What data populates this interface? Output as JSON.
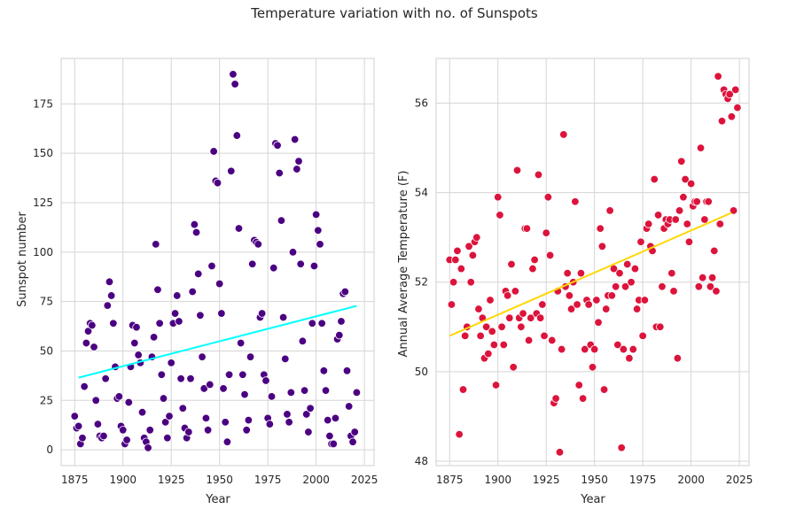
{
  "title": "Temperature variation with no. of Sunspots",
  "chart_data": [
    {
      "type": "scatter",
      "xlabel": "Year",
      "ylabel": "Sunspot number",
      "xlim": [
        1868,
        2030
      ],
      "ylim": [
        -8,
        198
      ],
      "xticks": [
        1875,
        1900,
        1925,
        1950,
        1975,
        2000,
        2025
      ],
      "yticks": [
        0,
        25,
        50,
        75,
        100,
        125,
        150,
        175
      ],
      "grid": true,
      "point_color": "#4B0082",
      "trend_color": "#00FFFF",
      "trend": [
        [
          1877,
          36.5
        ],
        [
          2021,
          72.8
        ]
      ],
      "points": [
        [
          1875,
          17
        ],
        [
          1876,
          11
        ],
        [
          1877,
          12
        ],
        [
          1878,
          3
        ],
        [
          1879,
          6
        ],
        [
          1880,
          32
        ],
        [
          1881,
          54
        ],
        [
          1882,
          60
        ],
        [
          1883,
          64
        ],
        [
          1884,
          63
        ],
        [
          1885,
          52
        ],
        [
          1886,
          25
        ],
        [
          1887,
          13
        ],
        [
          1888,
          7
        ],
        [
          1889,
          6
        ],
        [
          1890,
          7
        ],
        [
          1891,
          36
        ],
        [
          1892,
          73
        ],
        [
          1893,
          85
        ],
        [
          1894,
          78
        ],
        [
          1895,
          64
        ],
        [
          1896,
          42
        ],
        [
          1897,
          26
        ],
        [
          1898,
          27
        ],
        [
          1899,
          12
        ],
        [
          1900,
          10
        ],
        [
          1901,
          3
        ],
        [
          1902,
          5
        ],
        [
          1903,
          24
        ],
        [
          1904,
          42
        ],
        [
          1905,
          63
        ],
        [
          1906,
          54
        ],
        [
          1907,
          62
        ],
        [
          1908,
          48
        ],
        [
          1909,
          44
        ],
        [
          1910,
          19
        ],
        [
          1911,
          6
        ],
        [
          1912,
          4
        ],
        [
          1913,
          1
        ],
        [
          1914,
          10
        ],
        [
          1915,
          47
        ],
        [
          1916,
          57
        ],
        [
          1917,
          104
        ],
        [
          1918,
          81
        ],
        [
          1919,
          64
        ],
        [
          1920,
          38
        ],
        [
          1921,
          26
        ],
        [
          1922,
          14
        ],
        [
          1923,
          6
        ],
        [
          1924,
          17
        ],
        [
          1925,
          44
        ],
        [
          1926,
          64
        ],
        [
          1927,
          69
        ],
        [
          1928,
          78
        ],
        [
          1929,
          65
        ],
        [
          1930,
          36
        ],
        [
          1931,
          21
        ],
        [
          1932,
          11
        ],
        [
          1933,
          6
        ],
        [
          1934,
          9
        ],
        [
          1935,
          36
        ],
        [
          1936,
          80
        ],
        [
          1937,
          114
        ],
        [
          1938,
          110
        ],
        [
          1939,
          89
        ],
        [
          1940,
          68
        ],
        [
          1941,
          47
        ],
        [
          1942,
          31
        ],
        [
          1943,
          16
        ],
        [
          1944,
          10
        ],
        [
          1945,
          33
        ],
        [
          1946,
          93
        ],
        [
          1947,
          151
        ],
        [
          1948,
          136
        ],
        [
          1949,
          135
        ],
        [
          1950,
          84
        ],
        [
          1951,
          69
        ],
        [
          1952,
          31
        ],
        [
          1953,
          14
        ],
        [
          1954,
          4
        ],
        [
          1955,
          38
        ],
        [
          1956,
          141
        ],
        [
          1957,
          190
        ],
        [
          1958,
          185
        ],
        [
          1959,
          159
        ],
        [
          1960,
          112
        ],
        [
          1961,
          54
        ],
        [
          1962,
          38
        ],
        [
          1963,
          28
        ],
        [
          1964,
          10
        ],
        [
          1965,
          15
        ],
        [
          1966,
          47
        ],
        [
          1967,
          94
        ],
        [
          1968,
          106
        ],
        [
          1969,
          105
        ],
        [
          1970,
          104
        ],
        [
          1971,
          67
        ],
        [
          1972,
          69
        ],
        [
          1973,
          38
        ],
        [
          1974,
          35
        ],
        [
          1975,
          16
        ],
        [
          1976,
          13
        ],
        [
          1977,
          27
        ],
        [
          1978,
          92
        ],
        [
          1979,
          155
        ],
        [
          1980,
          154
        ],
        [
          1981,
          140
        ],
        [
          1982,
          116
        ],
        [
          1983,
          67
        ],
        [
          1984,
          46
        ],
        [
          1985,
          18
        ],
        [
          1986,
          14
        ],
        [
          1987,
          29
        ],
        [
          1988,
          100
        ],
        [
          1989,
          157
        ],
        [
          1990,
          142
        ],
        [
          1991,
          146
        ],
        [
          1992,
          94
        ],
        [
          1993,
          55
        ],
        [
          1994,
          30
        ],
        [
          1995,
          18
        ],
        [
          1996,
          9
        ],
        [
          1997,
          21
        ],
        [
          1998,
          64
        ],
        [
          1999,
          93
        ],
        [
          2000,
          119
        ],
        [
          2001,
          111
        ],
        [
          2002,
          104
        ],
        [
          2003,
          64
        ],
        [
          2004,
          40
        ],
        [
          2005,
          30
        ],
        [
          2006,
          15
        ],
        [
          2007,
          7
        ],
        [
          2008,
          3
        ],
        [
          2009,
          3
        ],
        [
          2010,
          16
        ],
        [
          2011,
          56
        ],
        [
          2012,
          58
        ],
        [
          2013,
          65
        ],
        [
          2014,
          79
        ],
        [
          2015,
          80
        ],
        [
          2016,
          40
        ],
        [
          2017,
          22
        ],
        [
          2018,
          7
        ],
        [
          2019,
          4
        ],
        [
          2020,
          9
        ],
        [
          2021,
          29
        ]
      ]
    },
    {
      "type": "scatter",
      "xlabel": "Year",
      "ylabel": "Annual Average Temperature (F)",
      "xlim": [
        1868,
        2030
      ],
      "ylim": [
        47.9,
        57.0
      ],
      "xticks": [
        1875,
        1900,
        1925,
        1950,
        1975,
        2000,
        2025
      ],
      "yticks": [
        48,
        50,
        52,
        54,
        56
      ],
      "grid": true,
      "point_color": "#DC143C",
      "trend_color": "#FFD700",
      "trend": [
        [
          1875,
          50.8
        ],
        [
          2021,
          53.55
        ]
      ],
      "points": [
        [
          1875,
          52.5
        ],
        [
          1876,
          51.5
        ],
        [
          1877,
          52.0
        ],
        [
          1878,
          52.5
        ],
        [
          1879,
          52.7
        ],
        [
          1880,
          48.6
        ],
        [
          1881,
          52.3
        ],
        [
          1882,
          49.6
        ],
        [
          1883,
          50.8
        ],
        [
          1884,
          51.0
        ],
        [
          1885,
          52.8
        ],
        [
          1886,
          52.0
        ],
        [
          1887,
          52.6
        ],
        [
          1888,
          52.9
        ],
        [
          1889,
          53.0
        ],
        [
          1890,
          51.4
        ],
        [
          1891,
          50.8
        ],
        [
          1892,
          51.2
        ],
        [
          1893,
          50.3
        ],
        [
          1894,
          51.0
        ],
        [
          1895,
          50.4
        ],
        [
          1896,
          51.6
        ],
        [
          1897,
          50.9
        ],
        [
          1898,
          50.6
        ],
        [
          1899,
          49.7
        ],
        [
          1900,
          53.9
        ],
        [
          1901,
          53.5
        ],
        [
          1902,
          51.0
        ],
        [
          1903,
          50.6
        ],
        [
          1904,
          51.8
        ],
        [
          1905,
          51.7
        ],
        [
          1906,
          51.2
        ],
        [
          1907,
          52.4
        ],
        [
          1908,
          50.1
        ],
        [
          1909,
          51.8
        ],
        [
          1910,
          54.5
        ],
        [
          1911,
          51.2
        ],
        [
          1912,
          51.0
        ],
        [
          1913,
          51.3
        ],
        [
          1914,
          53.2
        ],
        [
          1915,
          53.2
        ],
        [
          1916,
          50.7
        ],
        [
          1917,
          51.2
        ],
        [
          1918,
          52.3
        ],
        [
          1919,
          52.5
        ],
        [
          1920,
          51.3
        ],
        [
          1921,
          54.4
        ],
        [
          1922,
          51.2
        ],
        [
          1923,
          51.5
        ],
        [
          1924,
          50.8
        ],
        [
          1925,
          53.1
        ],
        [
          1926,
          53.9
        ],
        [
          1927,
          52.6
        ],
        [
          1928,
          50.7
        ],
        [
          1929,
          49.3
        ],
        [
          1930,
          49.4
        ],
        [
          1931,
          51.8
        ],
        [
          1932,
          48.2
        ],
        [
          1933,
          50.5
        ],
        [
          1934,
          55.3
        ],
        [
          1935,
          51.9
        ],
        [
          1936,
          52.2
        ],
        [
          1937,
          51.7
        ],
        [
          1938,
          51.4
        ],
        [
          1939,
          52.0
        ],
        [
          1940,
          53.8
        ],
        [
          1941,
          51.5
        ],
        [
          1942,
          49.7
        ],
        [
          1943,
          52.2
        ],
        [
          1944,
          49.4
        ],
        [
          1945,
          50.5
        ],
        [
          1946,
          51.6
        ],
        [
          1947,
          51.5
        ],
        [
          1948,
          50.6
        ],
        [
          1949,
          50.1
        ],
        [
          1950,
          50.5
        ],
        [
          1951,
          51.6
        ],
        [
          1952,
          51.1
        ],
        [
          1953,
          53.2
        ],
        [
          1954,
          52.8
        ],
        [
          1955,
          49.6
        ],
        [
          1956,
          51.4
        ],
        [
          1957,
          51.7
        ],
        [
          1958,
          53.6
        ],
        [
          1959,
          51.7
        ],
        [
          1960,
          52.3
        ],
        [
          1961,
          51.9
        ],
        [
          1962,
          50.6
        ],
        [
          1963,
          52.2
        ],
        [
          1964,
          48.3
        ],
        [
          1965,
          50.5
        ],
        [
          1966,
          51.9
        ],
        [
          1967,
          52.4
        ],
        [
          1968,
          50.3
        ],
        [
          1969,
          52.0
        ],
        [
          1970,
          50.5
        ],
        [
          1971,
          52.3
        ],
        [
          1972,
          51.4
        ],
        [
          1973,
          51.6
        ],
        [
          1974,
          52.9
        ],
        [
          1975,
          50.8
        ],
        [
          1976,
          51.6
        ],
        [
          1977,
          53.2
        ],
        [
          1978,
          53.3
        ],
        [
          1979,
          52.8
        ],
        [
          1980,
          52.7
        ],
        [
          1981,
          54.3
        ],
        [
          1982,
          51.0
        ],
        [
          1983,
          53.5
        ],
        [
          1984,
          51.0
        ],
        [
          1985,
          51.9
        ],
        [
          1986,
          53.2
        ],
        [
          1987,
          53.4
        ],
        [
          1988,
          53.3
        ],
        [
          1989,
          53.4
        ],
        [
          1990,
          52.2
        ],
        [
          1991,
          51.8
        ],
        [
          1992,
          53.4
        ],
        [
          1993,
          50.3
        ],
        [
          1994,
          53.6
        ],
        [
          1995,
          54.7
        ],
        [
          1996,
          53.9
        ],
        [
          1997,
          54.3
        ],
        [
          1998,
          53.3
        ],
        [
          1999,
          52.9
        ],
        [
          2000,
          54.2
        ],
        [
          2001,
          53.7
        ],
        [
          2002,
          53.8
        ],
        [
          2003,
          53.8
        ],
        [
          2004,
          51.9
        ],
        [
          2005,
          55.0
        ],
        [
          2006,
          52.1
        ],
        [
          2007,
          53.4
        ],
        [
          2008,
          53.8
        ],
        [
          2009,
          53.8
        ],
        [
          2010,
          51.9
        ],
        [
          2011,
          52.1
        ],
        [
          2012,
          52.7
        ],
        [
          2013,
          51.8
        ],
        [
          2014,
          56.6
        ],
        [
          2015,
          53.3
        ],
        [
          2016,
          55.6
        ],
        [
          2017,
          56.3
        ],
        [
          2018,
          56.2
        ],
        [
          2019,
          56.1
        ],
        [
          2020,
          56.2
        ],
        [
          2021,
          55.7
        ],
        [
          2022,
          53.6
        ],
        [
          2023,
          56.3
        ],
        [
          2024,
          55.9
        ]
      ]
    }
  ]
}
